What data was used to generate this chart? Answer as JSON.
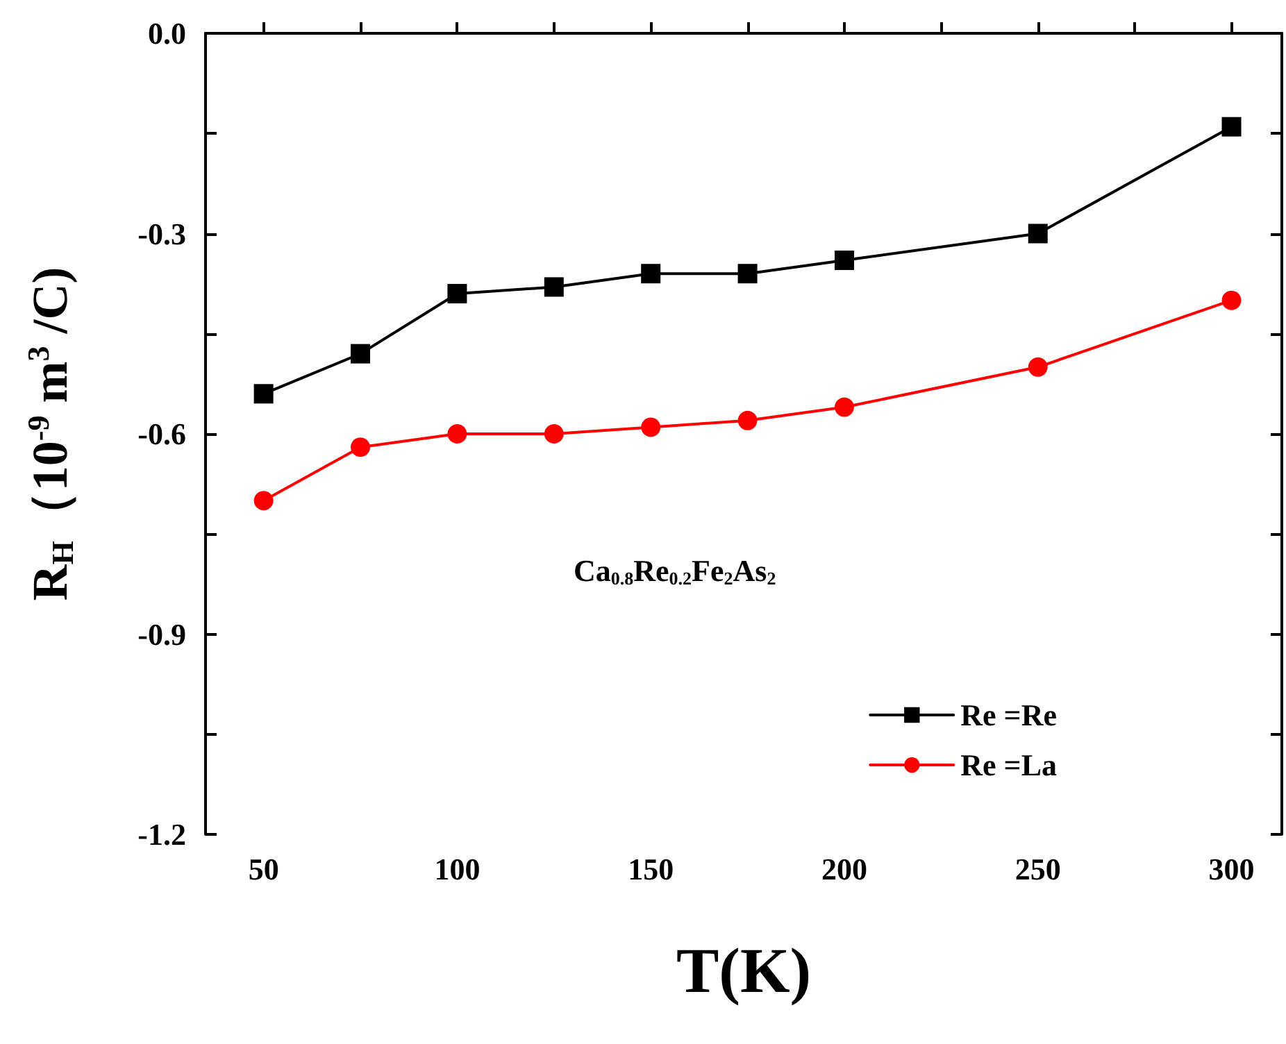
{
  "chart_data": {
    "type": "line",
    "xlabel": "T(K)",
    "ylabel": "R$_{H}$（10$^{-9}$ m$^{3}$ /C)",
    "annotations": [
      "Ca$_{0.8}$Re$_{0.2}$Fe$_{2}$As$_{2}$"
    ],
    "x": [
      50,
      75,
      100,
      125,
      150,
      175,
      200,
      250,
      300
    ],
    "series": [
      {
        "name": "Re =Re",
        "color": "#000000",
        "marker": "square",
        "values": [
          -0.54,
          -0.48,
          -0.39,
          -0.38,
          -0.36,
          -0.36,
          -0.34,
          -0.3,
          -0.14
        ]
      },
      {
        "name": "Re =La",
        "color": "#ff0000",
        "marker": "circle",
        "values": [
          -0.7,
          -0.62,
          -0.6,
          -0.6,
          -0.59,
          -0.58,
          -0.56,
          -0.5,
          -0.4
        ]
      }
    ],
    "xlim": [
      35,
      313
    ],
    "xticks": [
      50,
      {
        "value": 75,
        "label": null
      },
      100,
      {
        "value": 125,
        "label": null
      },
      150,
      {
        "value": 175,
        "label": null
      },
      200,
      {
        "value": 225,
        "label": null
      },
      250,
      {
        "value": 275,
        "label": null
      },
      300
    ],
    "ylim": [
      -1.2,
      0
    ],
    "yticks": [
      {
        "value": -1.2,
        "label": "-1.2"
      },
      {
        "value": -1.05,
        "label": null
      },
      {
        "value": -0.9,
        "label": "-0.9"
      },
      {
        "value": -0.75,
        "label": null
      },
      {
        "value": -0.6,
        "label": "-0.6"
      },
      {
        "value": -0.45,
        "label": null
      },
      {
        "value": -0.3,
        "label": "-0.3"
      },
      {
        "value": -0.15,
        "label": null
      },
      {
        "value": 0,
        "label": "0.0"
      }
    ],
    "legend": "bottom right",
    "grid": false,
    "line_style": "solid"
  }
}
